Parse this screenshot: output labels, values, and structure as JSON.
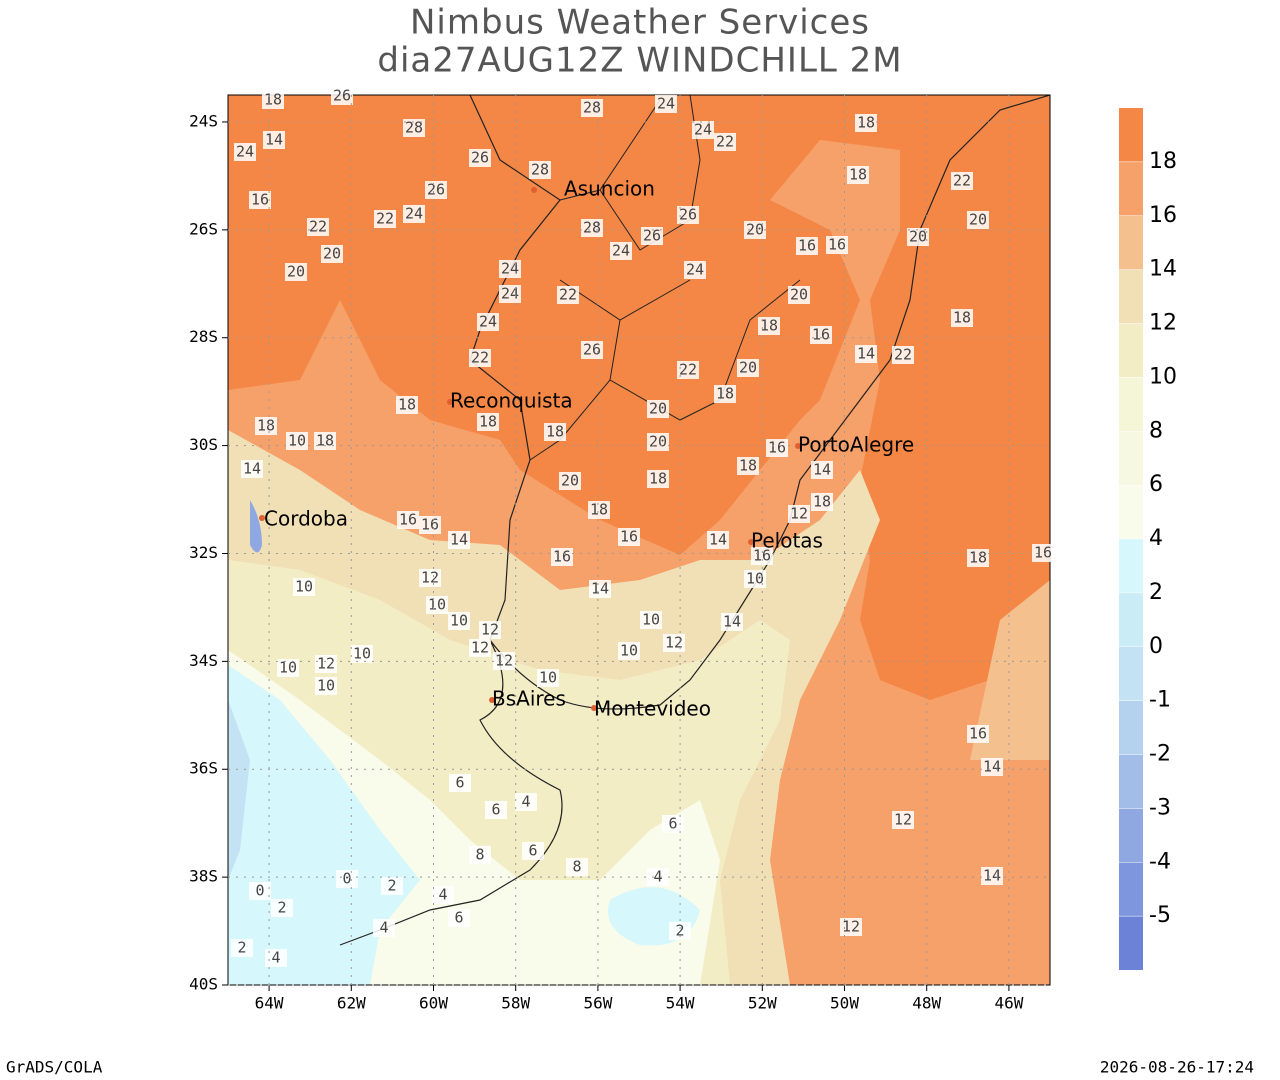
{
  "header": {
    "title": "Nimbus Weather Services",
    "subtitle": "dia27AUG12Z WINDCHILL 2M"
  },
  "map": {
    "lonlim": [
      -65,
      -45
    ],
    "latlim": [
      -40,
      -23.5
    ],
    "lonticks": [
      {
        "value": -64,
        "label": "64W"
      },
      {
        "value": -62,
        "label": "62W"
      },
      {
        "value": -60,
        "label": "60W"
      },
      {
        "value": -58,
        "label": "58W"
      },
      {
        "value": -56,
        "label": "56W"
      },
      {
        "value": -54,
        "label": "54W"
      },
      {
        "value": -52,
        "label": "52W"
      },
      {
        "value": -50,
        "label": "50W"
      },
      {
        "value": -48,
        "label": "48W"
      },
      {
        "value": -46,
        "label": "46W"
      }
    ],
    "latticks": [
      {
        "value": -24,
        "label": "24S"
      },
      {
        "value": -26,
        "label": "26S"
      },
      {
        "value": -28,
        "label": "28S"
      },
      {
        "value": -30,
        "label": "30S"
      },
      {
        "value": -32,
        "label": "32S"
      },
      {
        "value": -34,
        "label": "34S"
      },
      {
        "value": -36,
        "label": "36S"
      },
      {
        "value": -38,
        "label": "38S"
      },
      {
        "value": -40,
        "label": "40S"
      }
    ],
    "grid": true,
    "cities": [
      "Asuncion",
      "Reconquista",
      "Cordoba",
      "PortoAlegre",
      "Pelotas",
      "BsAires",
      "Montevideo"
    ],
    "contour_labels": [
      18,
      26,
      28,
      26,
      28,
      28,
      24,
      24,
      22,
      18,
      18,
      24,
      14,
      16,
      22,
      22,
      24,
      26,
      20,
      20,
      28,
      24,
      26,
      26,
      24,
      24,
      24,
      24,
      22,
      22,
      26,
      22,
      20,
      16,
      16,
      20,
      18,
      16,
      18,
      20,
      20,
      22,
      22,
      14,
      20,
      18,
      18,
      18,
      18,
      20,
      20,
      18,
      20,
      18,
      16,
      16,
      14,
      16,
      16,
      18,
      18,
      10,
      14,
      14,
      18,
      16,
      14,
      18,
      12,
      16,
      10,
      14,
      14,
      12,
      10,
      10,
      12,
      12,
      12,
      10,
      12,
      10,
      10,
      10,
      12,
      10,
      10,
      10,
      6,
      6,
      4,
      8,
      6,
      8,
      6,
      4,
      2,
      12,
      12,
      14,
      16,
      14,
      18,
      16,
      0,
      2,
      4,
      6,
      4,
      2,
      0,
      2,
      4
    ]
  },
  "colorbar": {
    "levels": [
      -5,
      -4,
      -3,
      -2,
      -1,
      0,
      2,
      4,
      6,
      8,
      10,
      12,
      14,
      16,
      18
    ],
    "colors": [
      "#6c82d6",
      "#7d96dd",
      "#8fa8e2",
      "#a2bee8",
      "#b4d2ee",
      "#c3e2f3",
      "#c9ecf7",
      "#d6f7fb",
      "#f9fbeb",
      "#f7f8e2",
      "#f5f5d7",
      "#f3edc6",
      "#f1e0b5",
      "#f3c08e",
      "#f6a06a",
      "#f58746"
    ]
  },
  "footer": {
    "left": "GrADS/COLA",
    "right": "2026-08-26-17:24"
  }
}
